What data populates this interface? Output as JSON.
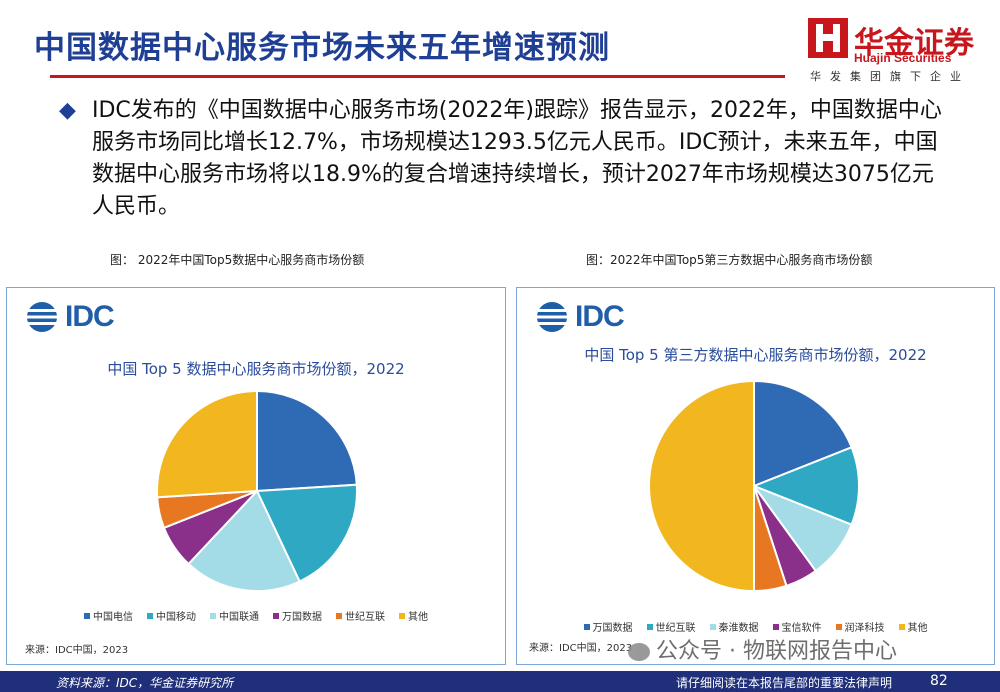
{
  "header": {
    "title": "中国数据中心服务市场未来五年增速预测",
    "logo_cn": "华金证券",
    "logo_en": "Huajin Securities",
    "logo_sub": "华发集团旗下企业",
    "accent": "#c8161d",
    "title_color": "#1f3f94"
  },
  "bullet": {
    "text": "IDC发布的《中国数据中心服务市场(2022年)跟踪》报告显示，2022年，中国数据中心服务市场同比增长12.7%，市场规模达1293.5亿元人民币。IDC预计，未来五年，中国数据中心服务市场将以18.9%的复合增速持续增长，预计2027年市场规模达3075亿元人民币。"
  },
  "figures": {
    "left_caption": "图：  2022年中国Top5数据中心服务商市场份额",
    "right_caption": "图：2022年中国Top5第三方数据中心服务商市场份额"
  },
  "idc_logo": "IDC",
  "chart_data": [
    {
      "type": "pie",
      "title": "中国 Top 5 数据中心服务商市场份额，2022",
      "categories": [
        "中国电信",
        "中国移动",
        "中国联通",
        "万国数据",
        "世纪互联",
        "其他"
      ],
      "values": [
        24,
        19,
        19,
        7,
        5,
        26
      ],
      "colors": [
        "#2f6bb5",
        "#2fa8c4",
        "#a3dbe6",
        "#8a2f8a",
        "#e87722",
        "#f2b61e"
      ],
      "legend": "bottom",
      "source": "来源：IDC中国，2023"
    },
    {
      "type": "pie",
      "title": "中国 Top 5 第三方数据中心服务商市场份额，2022",
      "categories": [
        "万国数据",
        "世纪互联",
        "秦淮数据",
        "宝信软件",
        "润泽科技",
        "其他"
      ],
      "values": [
        19,
        12,
        9,
        5,
        5,
        50
      ],
      "colors": [
        "#2f6bb5",
        "#2fa8c4",
        "#a3dbe6",
        "#8a2f8a",
        "#e87722",
        "#f2b61e"
      ],
      "legend": "bottom",
      "source": "来源：IDC中国，2023"
    }
  ],
  "footer": {
    "left": "资料来源：IDC，华金证券研究所",
    "right": "请仔细阅读在本报告尾部的重要法律声明",
    "page": "82",
    "bg": "#1f2f7a"
  },
  "watermark": "公众号 · 物联网报告中心"
}
